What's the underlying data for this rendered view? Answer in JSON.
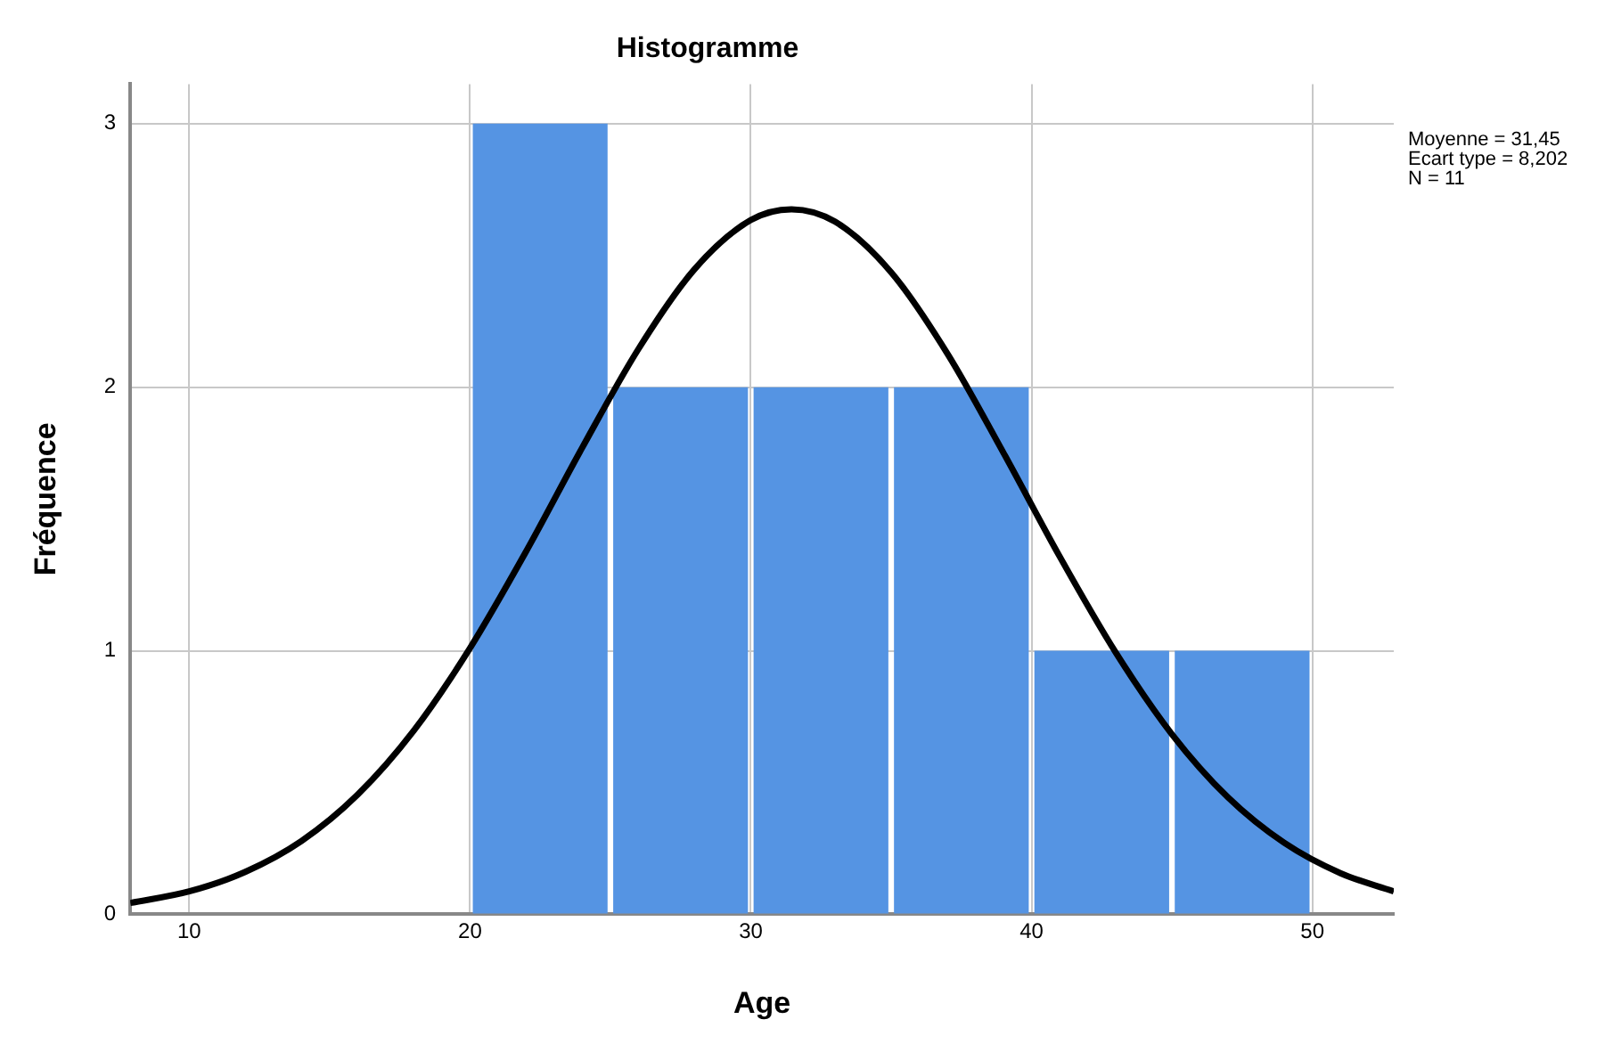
{
  "chart_data": {
    "type": "histogram",
    "title": "Histogramme",
    "xlabel": "Age",
    "ylabel": "Fréquence",
    "bins": [
      20,
      25,
      30,
      35,
      40,
      45,
      50
    ],
    "values": [
      3,
      2,
      2,
      2,
      1,
      1
    ],
    "color": "#5594e3",
    "series": [
      {
        "type": "line",
        "color": "#000000",
        "marker": "none",
        "x": [
          7.9,
          10,
          12,
          14,
          16,
          18,
          20,
          22,
          24,
          26,
          28,
          30,
          31.45,
          33,
          35,
          37,
          39,
          41,
          43,
          45,
          47,
          49,
          51,
          52.9
        ],
        "values": [
          0.043,
          0.087,
          0.161,
          0.278,
          0.454,
          0.697,
          1.01,
          1.377,
          1.771,
          2.145,
          2.448,
          2.634,
          2.675,
          2.628,
          2.436,
          2.128,
          1.751,
          1.358,
          0.993,
          0.683,
          0.443,
          0.271,
          0.156,
          0.087
        ]
      }
    ],
    "xlim": [
      7.9,
      52.9
    ],
    "xticks": [
      10,
      20,
      30,
      40,
      50
    ],
    "ylim": [
      0,
      3.15
    ],
    "yticks": [
      0,
      1,
      2,
      3
    ],
    "grid": true,
    "legend": false,
    "annotations": [
      "Moyenne = 31,45",
      "Ecart type = 8,202",
      "N = 11"
    ]
  }
}
